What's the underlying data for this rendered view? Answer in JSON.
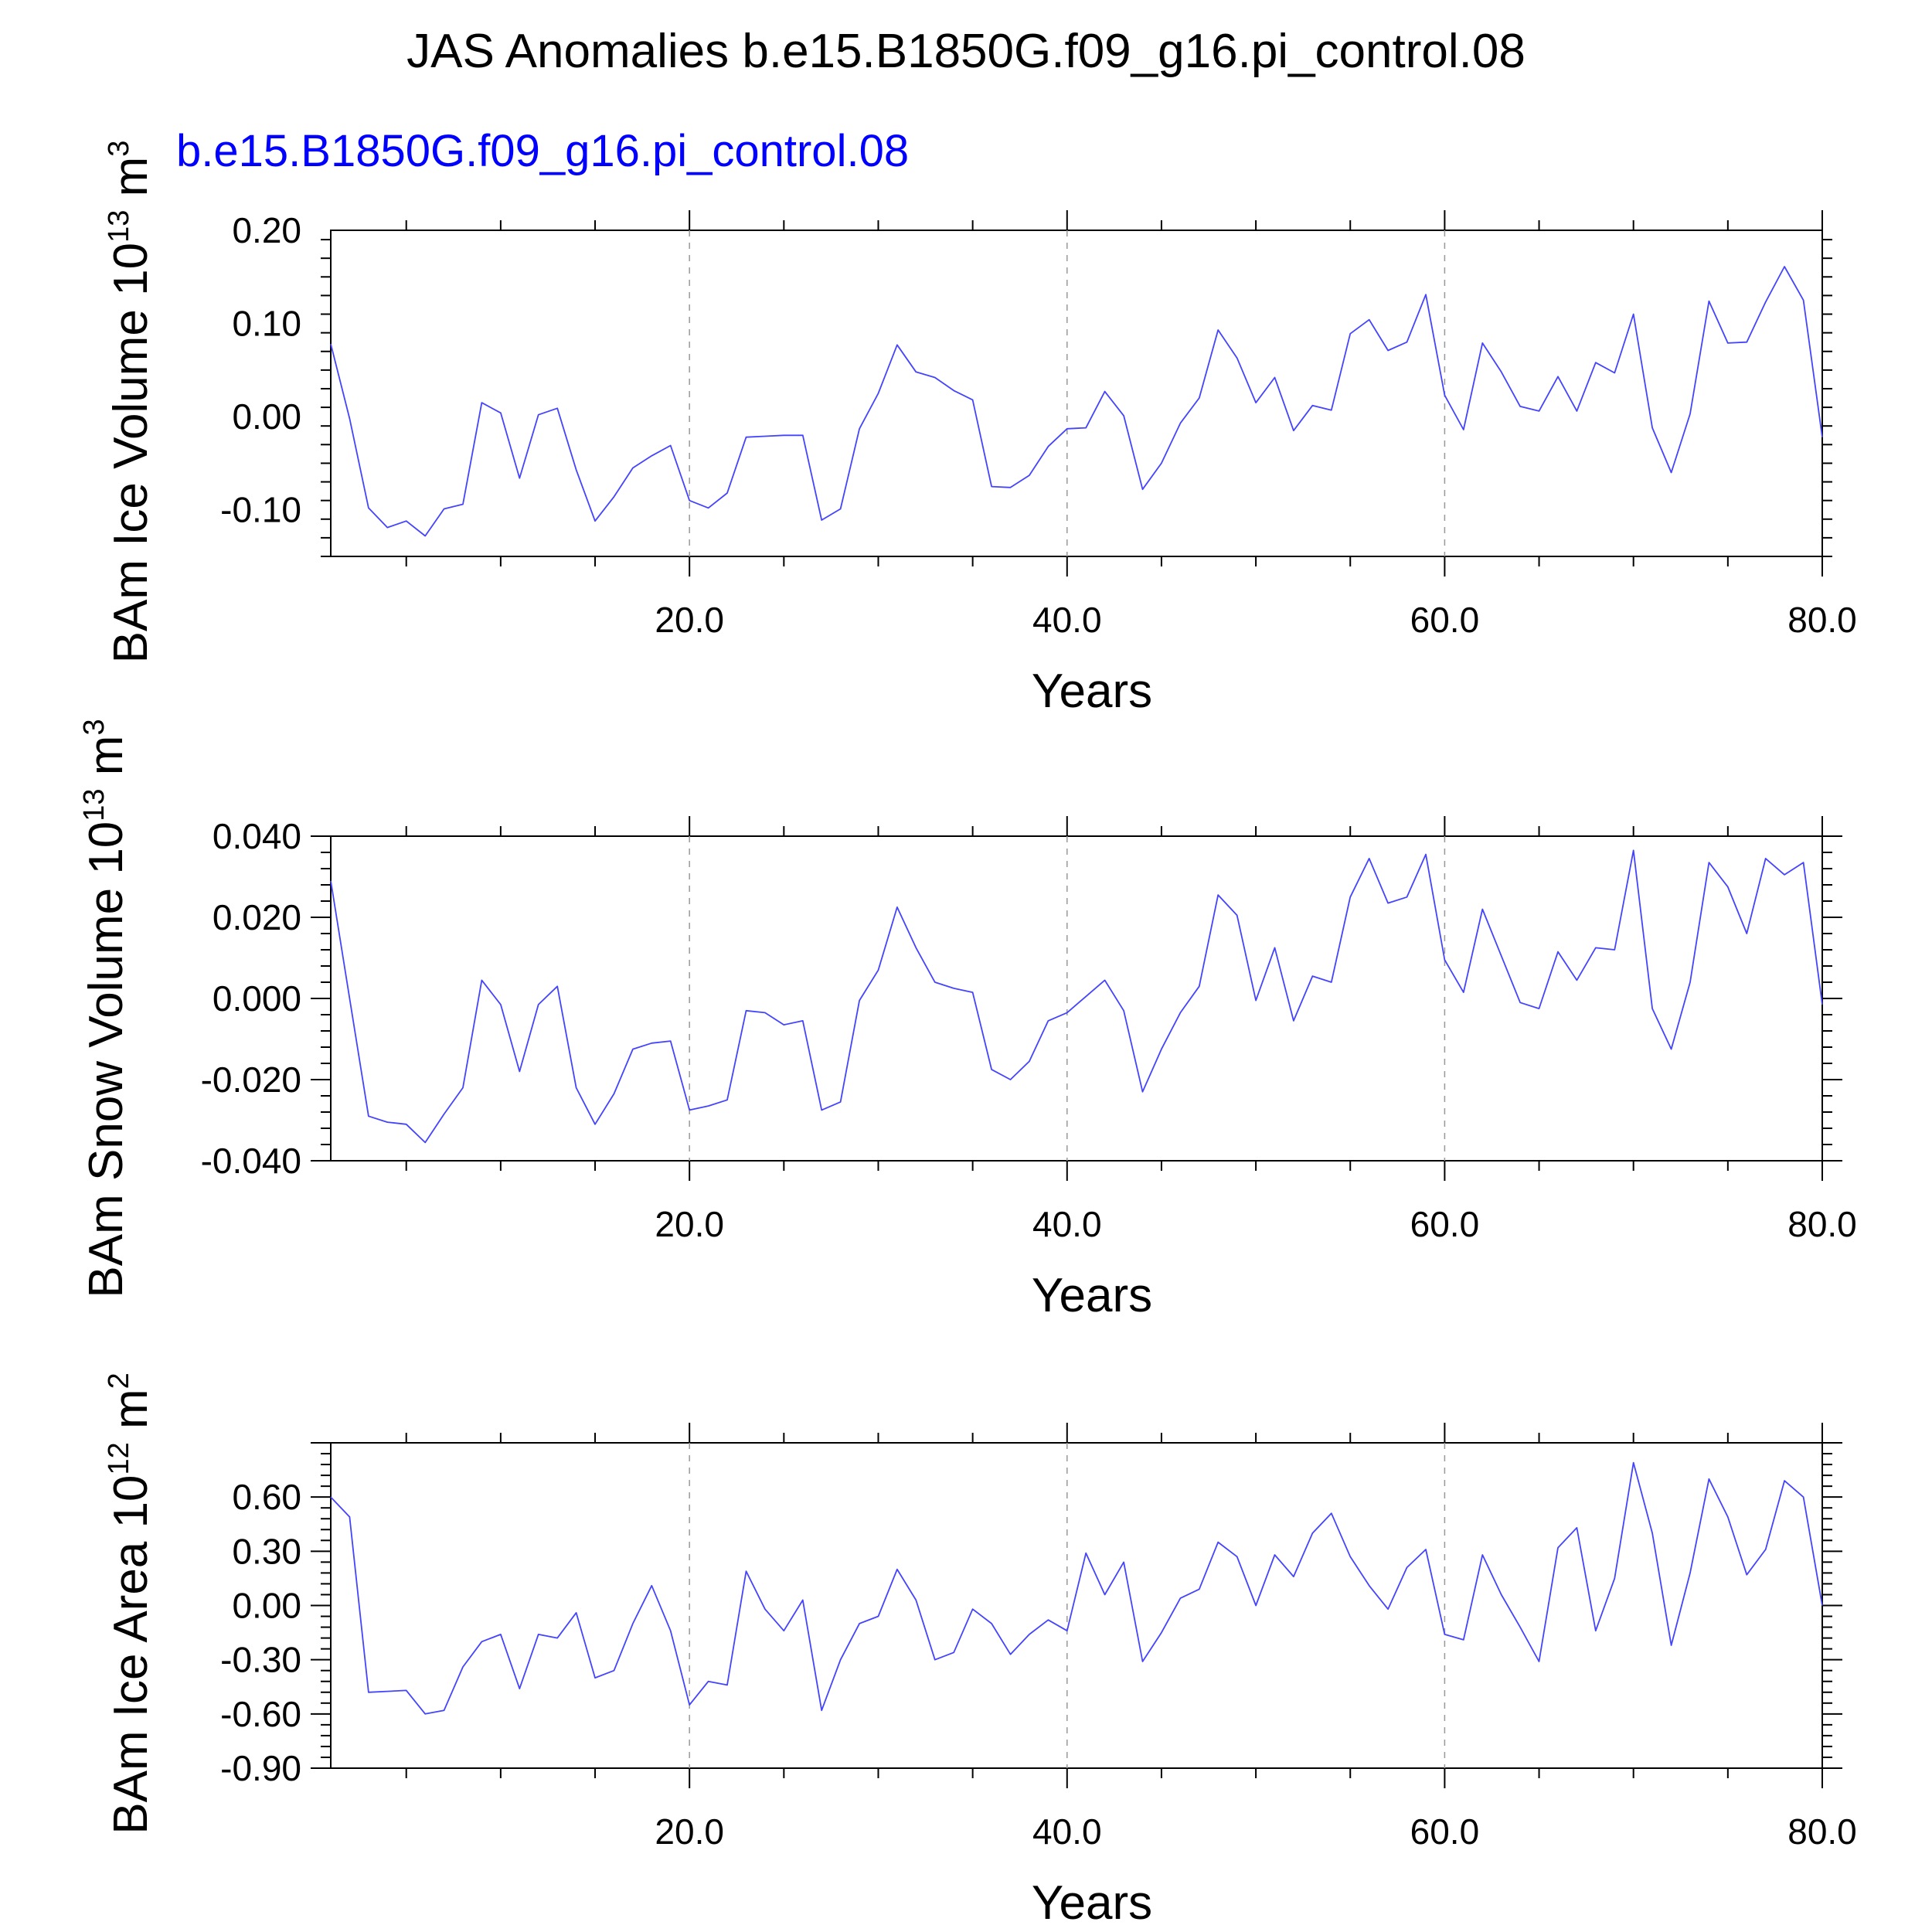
{
  "figure": {
    "title": "JAS Anomalies b.e15.B1850G.f09_g16.pi_control.08",
    "subtitle": "b.e15.B1850G.f09_g16.pi_control.08"
  },
  "colors": {
    "line": "#4444ff",
    "subtitle": "#0000ff",
    "axis": "#000000",
    "grid": "#999999"
  },
  "chart_data": [
    {
      "type": "line",
      "title": "",
      "xlabel": "Years",
      "ylabel": "BAm Ice Volume 10",
      "ylabel_exp": "13",
      "ylabel_unit": "m",
      "ylabel_unit_exp": "3",
      "xlim": [
        1,
        80
      ],
      "ylim": [
        -0.15,
        0.2
      ],
      "xticks": [
        20,
        40,
        60,
        80
      ],
      "xtick_labels": [
        "20.0",
        "40.0",
        "60.0",
        "80.0"
      ],
      "yticks": [
        -0.1,
        0.0,
        0.1,
        0.2
      ],
      "ytick_labels": [
        "-0.10",
        "0.00",
        "0.10",
        "0.20"
      ],
      "grid": "vertical dashed at major x ticks",
      "series": [
        {
          "values": [
            0.078,
            -0.002,
            -0.098,
            -0.119,
            -0.112,
            -0.128,
            -0.099,
            -0.094,
            0.015,
            0.004,
            -0.066,
            0.002,
            0.009,
            -0.057,
            -0.112,
            -0.086,
            -0.055,
            -0.042,
            -0.031,
            -0.09,
            -0.098,
            -0.082,
            -0.022,
            -0.021,
            -0.02,
            -0.02,
            -0.111,
            -0.099,
            -0.013,
            0.025,
            0.077,
            0.048,
            0.042,
            0.028,
            0.018,
            -0.075,
            -0.076,
            -0.063,
            -0.032,
            -0.013,
            -0.012,
            0.027,
            0.001,
            -0.078,
            -0.05,
            -0.007,
            0.02,
            0.093,
            0.063,
            0.015,
            0.042,
            -0.015,
            0.012,
            0.007,
            0.089,
            0.104,
            0.071,
            0.08,
            0.131,
            0.023,
            -0.014,
            0.079,
            0.048,
            0.011,
            0.006,
            0.043,
            0.006,
            0.058,
            0.047,
            0.11,
            -0.012,
            -0.06,
            0.003,
            0.124,
            0.079,
            0.08,
            0.123,
            0.161,
            0.125,
            -0.022
          ]
        }
      ]
    },
    {
      "type": "line",
      "title": "",
      "xlabel": "Years",
      "ylabel": "BAm Snow Volume 10",
      "ylabel_exp": "13",
      "ylabel_unit": "m",
      "ylabel_unit_exp": "3",
      "xlim": [
        1,
        80
      ],
      "ylim": [
        -0.04,
        0.04
      ],
      "xticks": [
        20,
        40,
        60,
        80
      ],
      "xtick_labels": [
        "20.0",
        "40.0",
        "60.0",
        "80.0"
      ],
      "yticks": [
        -0.04,
        -0.02,
        0.0,
        0.02,
        0.04
      ],
      "ytick_labels": [
        "-0.040",
        "-0.020",
        "0.000",
        "0.020",
        "0.040"
      ],
      "grid": "vertical dashed at major x ticks",
      "series": [
        {
          "values": [
            0.029,
            0.0,
            -0.029,
            -0.0305,
            -0.031,
            -0.0355,
            -0.0285,
            -0.022,
            0.0045,
            -0.0015,
            -0.018,
            -0.0015,
            0.003,
            -0.022,
            -0.031,
            -0.0235,
            -0.0125,
            -0.011,
            -0.0105,
            -0.0275,
            -0.0265,
            -0.025,
            -0.003,
            -0.0035,
            -0.0065,
            -0.0055,
            -0.0275,
            -0.0255,
            -0.0005,
            0.007,
            0.0225,
            0.0125,
            0.004,
            0.0025,
            0.0015,
            -0.0175,
            -0.02,
            -0.0155,
            -0.0055,
            -0.0035,
            0.0005,
            0.0045,
            -0.003,
            -0.023,
            -0.0125,
            -0.0035,
            0.003,
            0.0255,
            0.0205,
            -0.0005,
            0.0125,
            -0.0055,
            0.0055,
            0.004,
            0.025,
            0.0345,
            0.0235,
            0.025,
            0.0355,
            0.0095,
            0.0015,
            0.022,
            0.0105,
            -0.001,
            -0.0025,
            0.0115,
            0.0045,
            0.0125,
            0.012,
            0.0365,
            -0.0025,
            -0.0125,
            0.004,
            0.0335,
            0.0275,
            0.016,
            0.0345,
            0.0305,
            0.0335,
            -0.0015
          ]
        }
      ]
    },
    {
      "type": "line",
      "title": "",
      "xlabel": "Years",
      "ylabel": "BAm Ice Area 10",
      "ylabel_exp": "12",
      "ylabel_unit": "m",
      "ylabel_unit_exp": "2",
      "xlim": [
        1,
        80
      ],
      "ylim": [
        -0.9,
        0.9
      ],
      "xticks": [
        20,
        40,
        60,
        80
      ],
      "xtick_labels": [
        "20.0",
        "40.0",
        "60.0",
        "80.0"
      ],
      "yticks": [
        -0.9,
        -0.6,
        -0.3,
        0.0,
        0.3,
        0.6
      ],
      "ytick_labels": [
        "-0.90",
        "-0.60",
        "-0.30",
        "0.00",
        "0.30",
        "0.60"
      ],
      "grid": "vertical dashed at major x ticks",
      "series": [
        {
          "values": [
            0.6,
            0.49,
            -0.48,
            -0.475,
            -0.47,
            -0.6,
            -0.58,
            -0.34,
            -0.2,
            -0.16,
            -0.46,
            -0.16,
            -0.18,
            -0.04,
            -0.4,
            -0.36,
            -0.1,
            0.11,
            -0.14,
            -0.55,
            -0.42,
            -0.44,
            0.19,
            -0.02,
            -0.14,
            0.03,
            -0.58,
            -0.3,
            -0.1,
            -0.06,
            0.2,
            0.03,
            -0.3,
            -0.26,
            -0.02,
            -0.1,
            -0.27,
            -0.16,
            -0.08,
            -0.14,
            0.29,
            0.06,
            0.24,
            -0.31,
            -0.15,
            0.04,
            0.09,
            0.35,
            0.27,
            0.0,
            0.28,
            0.16,
            0.4,
            0.51,
            0.27,
            0.11,
            -0.02,
            0.21,
            0.31,
            -0.16,
            -0.19,
            0.28,
            0.06,
            -0.12,
            -0.31,
            0.32,
            0.43,
            -0.14,
            0.15,
            0.79,
            0.4,
            -0.22,
            0.18,
            0.7,
            0.49,
            0.17,
            0.31,
            0.69,
            0.6,
            0.0
          ]
        }
      ]
    }
  ]
}
